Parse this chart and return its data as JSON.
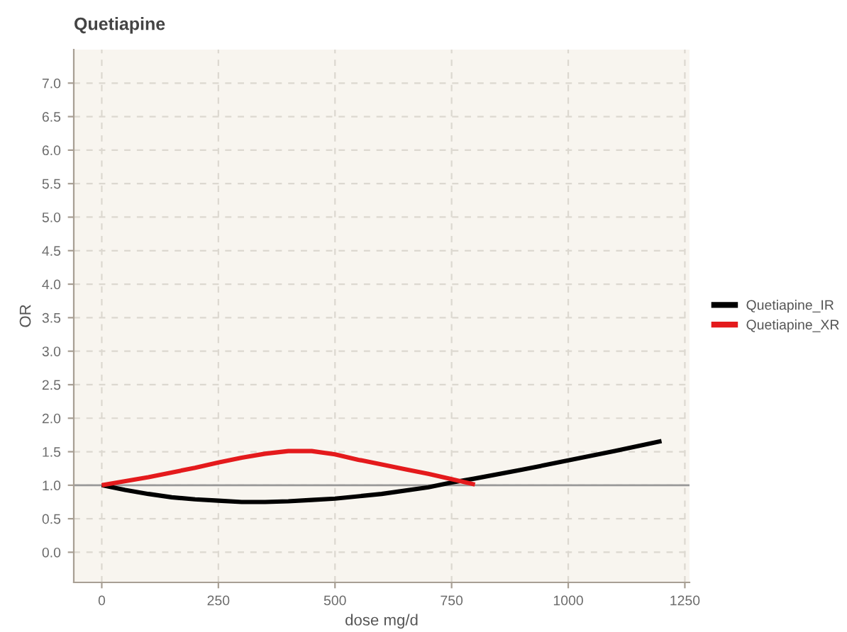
{
  "chart_data": {
    "type": "line",
    "title": "Quetiapine",
    "xlabel": "dose mg/d",
    "ylabel": "OR",
    "series": [
      {
        "name": "Quetiapine_IR",
        "color": "#000000",
        "x": [
          0,
          50,
          100,
          150,
          200,
          250,
          300,
          350,
          400,
          450,
          500,
          600,
          700,
          750,
          800,
          900,
          1000,
          1100,
          1200
        ],
        "values": [
          1.0,
          0.93,
          0.87,
          0.82,
          0.79,
          0.77,
          0.75,
          0.75,
          0.76,
          0.78,
          0.8,
          0.87,
          0.97,
          1.04,
          1.1,
          1.23,
          1.37,
          1.51,
          1.66
        ]
      },
      {
        "name": "Quetiapine_XR",
        "color": "#e41a1c",
        "x": [
          0,
          100,
          200,
          250,
          300,
          350,
          400,
          450,
          500,
          550,
          600,
          650,
          700,
          750,
          800
        ],
        "values": [
          1.0,
          1.12,
          1.26,
          1.34,
          1.41,
          1.47,
          1.51,
          1.51,
          1.46,
          1.38,
          1.31,
          1.24,
          1.17,
          1.09,
          1.01
        ]
      }
    ],
    "xlim": [
      -60,
      1260
    ],
    "xticks": [
      0,
      250,
      500,
      750,
      1000,
      1250
    ],
    "ylim": [
      -0.45,
      7.5
    ],
    "yticks": [
      {
        "value": 0,
        "label": "0.0"
      },
      {
        "value": 0.5,
        "label": "0.5"
      },
      {
        "value": 1,
        "label": "1.0"
      },
      {
        "value": 1.5,
        "label": "1.5"
      },
      {
        "value": 2,
        "label": "2.0"
      },
      {
        "value": 2.5,
        "label": "2.5"
      },
      {
        "value": 3,
        "label": "3.0"
      },
      {
        "value": 3.5,
        "label": "3.5"
      },
      {
        "value": 4,
        "label": "4.0"
      },
      {
        "value": 4.5,
        "label": "4.5"
      },
      {
        "value": 5,
        "label": "5.0"
      },
      {
        "value": 5.5,
        "label": "5.5"
      },
      {
        "value": 6,
        "label": "6.0"
      },
      {
        "value": 6.5,
        "label": "6.5"
      },
      {
        "value": 7,
        "label": "7.0"
      }
    ],
    "ref_lines": [
      {
        "axis": "y",
        "value": 1,
        "color": "#999999"
      }
    ],
    "grid": true,
    "legend": "right",
    "line_style": "solid"
  }
}
